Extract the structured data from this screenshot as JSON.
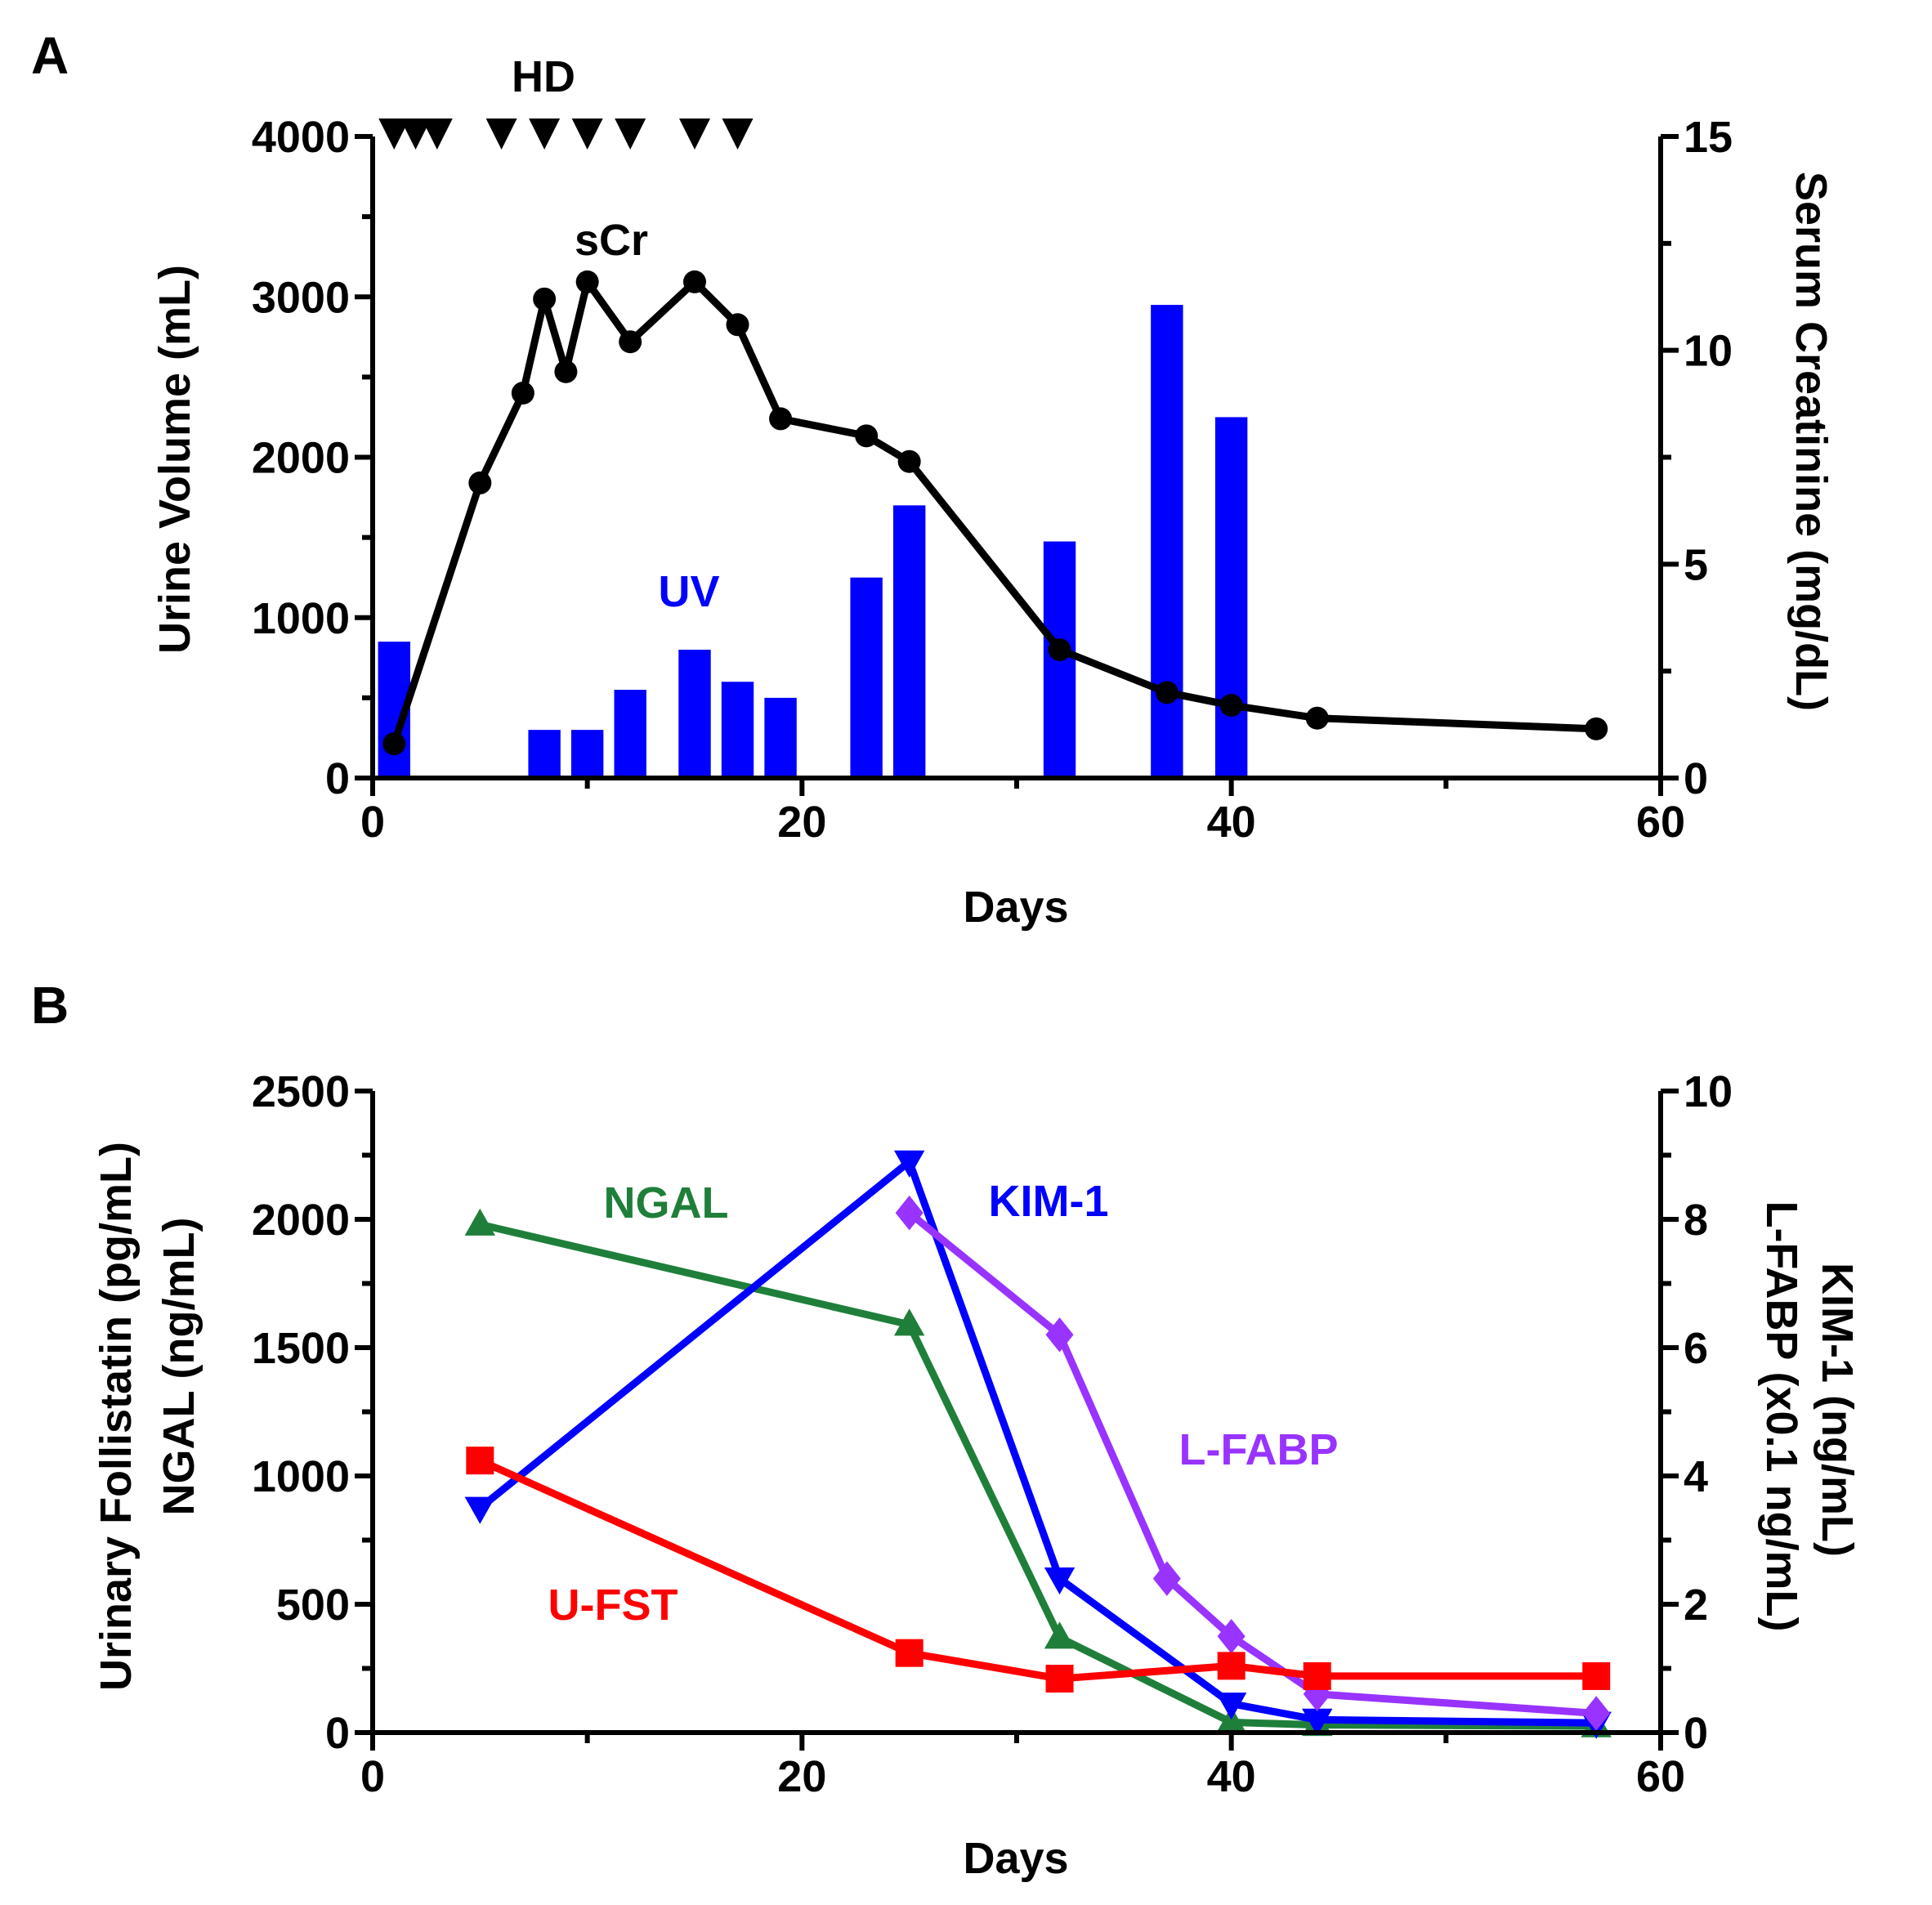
{
  "chart_data": [
    {
      "panel": "A",
      "type": "bar+line",
      "xlabel": "Days",
      "ylabel_left": "Urine Volume (mL)",
      "ylabel_right": "Serum Creatinine (mg/dL)",
      "xlim": [
        0,
        60
      ],
      "ylim_left": [
        0,
        4000
      ],
      "ylim_right": [
        0,
        15
      ],
      "x_ticks": [
        0,
        20,
        40,
        60
      ],
      "x_minor_ticks": [
        10,
        30,
        50
      ],
      "y_left_ticks": [
        0,
        1000,
        2000,
        3000,
        4000
      ],
      "y_left_minor_ticks": [
        500,
        1500,
        2500,
        3500
      ],
      "y_right_ticks": [
        0,
        5,
        10,
        15
      ],
      "y_right_minor_ticks": [
        2.5,
        7.5,
        12.5
      ],
      "hd_label": "HD",
      "hd_days": [
        1,
        2,
        3,
        6,
        8,
        10,
        12,
        15,
        17
      ],
      "bars": {
        "name": "UV",
        "color": "#0000ff",
        "axis": "left",
        "x": [
          1,
          8,
          10,
          12,
          15,
          17,
          19,
          23,
          25,
          32,
          37,
          40
        ],
        "values": [
          850,
          300,
          300,
          550,
          800,
          600,
          500,
          1250,
          1700,
          1475,
          2950,
          2250
        ]
      },
      "line": {
        "name": "sCr",
        "color": "#000000",
        "axis": "right",
        "x": [
          1,
          5,
          7,
          8,
          9,
          10,
          12,
          15,
          17,
          19,
          23,
          25,
          32,
          37,
          40,
          44,
          57
        ],
        "values": [
          0.8,
          6.9,
          9.0,
          11.2,
          9.5,
          11.6,
          10.2,
          11.6,
          10.6,
          8.4,
          8.0,
          7.4,
          3.0,
          2.0,
          1.7,
          1.4,
          1.15
        ]
      }
    },
    {
      "panel": "B",
      "type": "line",
      "xlabel": "Days",
      "ylabel_left": [
        "Urinary Follistatin (pg/mL)",
        "NGAL (ng/mL)"
      ],
      "ylabel_right": [
        "KIM-1 (ng/mL)",
        "L-FABP (x0.1 ng/mL)"
      ],
      "xlim": [
        0,
        60
      ],
      "ylim_left": [
        0,
        2500
      ],
      "ylim_right": [
        0,
        10
      ],
      "x_ticks": [
        0,
        20,
        40,
        60
      ],
      "x_minor_ticks": [
        10,
        30,
        50
      ],
      "y_left_ticks": [
        0,
        500,
        1000,
        1500,
        2000,
        2500
      ],
      "y_left_minor_ticks": [
        250,
        750,
        1250,
        1750,
        2250
      ],
      "y_right_ticks": [
        0,
        2,
        4,
        6,
        8,
        10
      ],
      "y_right_minor_ticks": [
        1,
        3,
        5,
        7,
        9
      ],
      "series": [
        {
          "name": "NGAL",
          "color": "#1f7f3a",
          "axis": "left",
          "marker": "triangle-up",
          "x": [
            5,
            25,
            32,
            40,
            44,
            57
          ],
          "values": [
            1980,
            1590,
            370,
            40,
            30,
            25
          ]
        },
        {
          "name": "KIM-1",
          "color": "#0000ff",
          "axis": "right",
          "marker": "triangle-down",
          "x": [
            5,
            25,
            32,
            40,
            44,
            57
          ],
          "values": [
            3.5,
            8.9,
            2.4,
            0.45,
            0.2,
            0.15
          ]
        },
        {
          "name": "L-FABP",
          "color": "#9933ff",
          "axis": "right",
          "marker": "diamond",
          "x": [
            25,
            32,
            37,
            40,
            44,
            57
          ],
          "values": [
            8.1,
            6.2,
            2.4,
            1.5,
            0.6,
            0.3
          ]
        },
        {
          "name": "U-FST",
          "color": "#ff0000",
          "axis": "left",
          "marker": "square",
          "x": [
            5,
            25,
            32,
            40,
            44,
            57
          ],
          "values": [
            1060,
            310,
            210,
            260,
            220,
            220
          ]
        }
      ]
    }
  ]
}
